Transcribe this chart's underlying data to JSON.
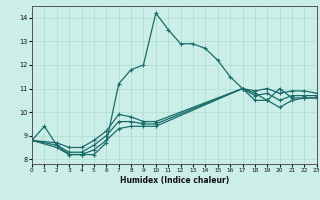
{
  "xlabel": "Humidex (Indice chaleur)",
  "xlim": [
    0,
    23
  ],
  "ylim": [
    7.8,
    14.5
  ],
  "xticks": [
    0,
    1,
    2,
    3,
    4,
    5,
    6,
    7,
    8,
    9,
    10,
    11,
    12,
    13,
    14,
    15,
    16,
    17,
    18,
    19,
    20,
    21,
    22,
    23
  ],
  "yticks": [
    8,
    9,
    10,
    11,
    12,
    13,
    14
  ],
  "bg_color": "#cceee8",
  "grid_color": "#aaddcc",
  "line_color": "#1a6b6b",
  "line1_x": [
    0,
    1,
    2,
    3,
    4,
    5,
    6,
    7,
    8,
    9,
    10,
    11,
    12,
    13,
    14,
    15,
    16,
    17,
    18,
    19,
    20,
    21,
    22,
    23
  ],
  "line1_y": [
    8.8,
    9.4,
    8.6,
    8.2,
    8.2,
    8.2,
    8.7,
    11.2,
    11.8,
    12.0,
    14.2,
    13.5,
    12.9,
    12.9,
    12.7,
    12.2,
    11.5,
    11.0,
    10.8,
    10.5,
    11.0,
    10.6,
    10.6,
    10.6
  ],
  "line2_x": [
    0,
    2,
    3,
    4,
    5,
    6,
    7,
    8,
    9,
    10,
    17,
    18,
    19,
    20,
    21,
    22,
    23
  ],
  "line2_y": [
    8.8,
    8.5,
    8.2,
    8.2,
    8.4,
    8.8,
    9.3,
    9.4,
    9.4,
    9.4,
    11.0,
    10.5,
    10.5,
    10.2,
    10.5,
    10.6,
    10.6
  ],
  "line3_x": [
    0,
    2,
    3,
    4,
    5,
    6,
    7,
    8,
    9,
    10,
    17,
    18,
    19,
    20,
    21,
    22,
    23
  ],
  "line3_y": [
    8.8,
    8.6,
    8.3,
    8.3,
    8.6,
    9.0,
    9.6,
    9.6,
    9.5,
    9.5,
    11.0,
    10.7,
    10.8,
    10.5,
    10.7,
    10.7,
    10.7
  ],
  "line4_x": [
    0,
    2,
    3,
    4,
    5,
    6,
    7,
    8,
    9,
    10,
    17,
    18,
    19,
    20,
    21,
    22,
    23
  ],
  "line4_y": [
    8.8,
    8.7,
    8.5,
    8.5,
    8.8,
    9.2,
    9.9,
    9.8,
    9.6,
    9.6,
    11.0,
    10.9,
    11.0,
    10.8,
    10.9,
    10.9,
    10.8
  ]
}
